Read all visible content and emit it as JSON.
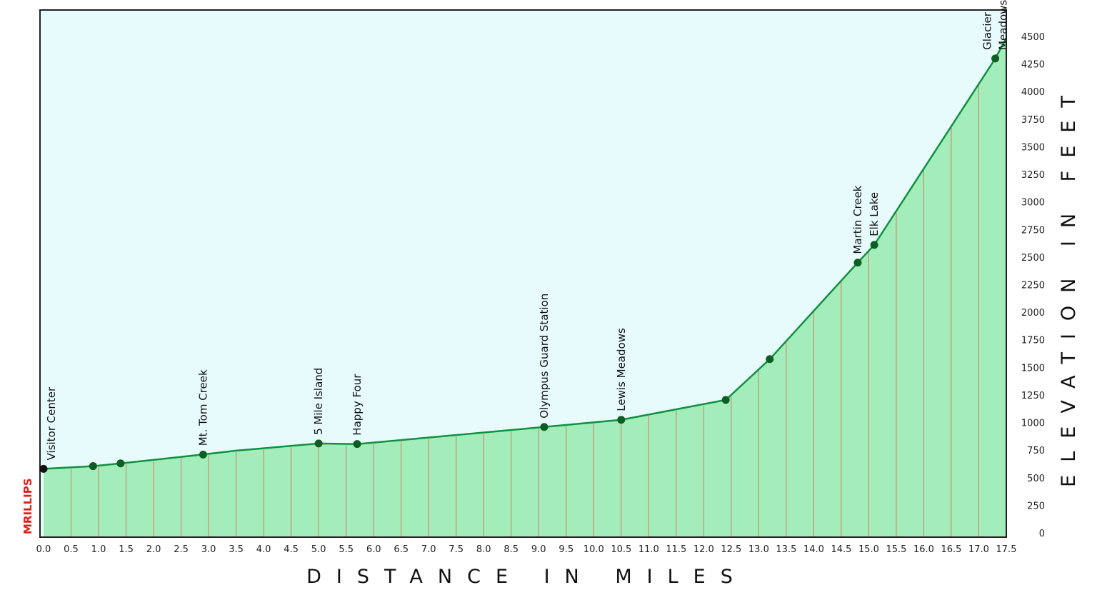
{
  "chart_data": {
    "type": "area",
    "xlabel": "DISTANCE IN MILES",
    "ylabel": "ELEVATION IN FEET",
    "xlim": [
      0,
      17.5
    ],
    "ylim": [
      0,
      4500
    ],
    "x_ticks": [
      "0.0",
      "0.5",
      "1.0",
      "1.5",
      "2.0",
      "2.5",
      "3.0",
      "3.5",
      "4.0",
      "4.5",
      "5.0",
      "5.5",
      "6.0",
      "6.5",
      "7.0",
      "7.5",
      "8.0",
      "8.5",
      "9.0",
      "9.5",
      "10.0",
      "10.5",
      "11.0",
      "11.5",
      "12.0",
      "12.5",
      "13.0",
      "13.5",
      "14.0",
      "14.5",
      "15.0",
      "15.5",
      "16.0",
      "16.5",
      "17.0",
      "17.5"
    ],
    "y_ticks": [
      "0",
      "250",
      "500",
      "750",
      "1000",
      "1250",
      "1500",
      "1750",
      "2000",
      "2250",
      "2500",
      "2750",
      "3000",
      "3250",
      "3500",
      "3750",
      "4000",
      "4250",
      "4500"
    ],
    "y_axis_side": "right",
    "grid": true,
    "profile": [
      {
        "x": 0.0,
        "y": 580
      },
      {
        "x": 0.9,
        "y": 605
      },
      {
        "x": 1.4,
        "y": 630
      },
      {
        "x": 2.9,
        "y": 710
      },
      {
        "x": 3.5,
        "y": 745
      },
      {
        "x": 5.0,
        "y": 810
      },
      {
        "x": 5.7,
        "y": 805
      },
      {
        "x": 9.1,
        "y": 960
      },
      {
        "x": 10.5,
        "y": 1025
      },
      {
        "x": 12.4,
        "y": 1205
      },
      {
        "x": 13.2,
        "y": 1575
      },
      {
        "x": 14.8,
        "y": 2450
      },
      {
        "x": 15.1,
        "y": 2610
      },
      {
        "x": 17.3,
        "y": 4300
      },
      {
        "x": 17.5,
        "y": 4485
      }
    ],
    "waypoints": [
      {
        "label": "Visitor Center",
        "x": 0.0,
        "y": 580
      },
      {
        "label": "",
        "x": 0.9,
        "y": 605
      },
      {
        "label": "",
        "x": 1.4,
        "y": 630
      },
      {
        "label": "Mt. Tom Creek",
        "x": 2.9,
        "y": 710
      },
      {
        "label": "5 Mile Island",
        "x": 5.0,
        "y": 810
      },
      {
        "label": "Happy Four",
        "x": 5.7,
        "y": 805
      },
      {
        "label": "Olympus Guard Station",
        "x": 9.1,
        "y": 960
      },
      {
        "label": "Lewis Meadows",
        "x": 10.5,
        "y": 1025
      },
      {
        "label": "",
        "x": 12.4,
        "y": 1205
      },
      {
        "label": "",
        "x": 13.2,
        "y": 1575
      },
      {
        "label": "Martin Creek",
        "x": 14.8,
        "y": 2450
      },
      {
        "label": "Elk Lake",
        "x": 15.1,
        "y": 2610
      },
      {
        "label": [
          "Glacier",
          "Meadows"
        ],
        "x": 17.3,
        "y": 4300
      }
    ],
    "signature": "MRILLIPS",
    "colors": {
      "plot_background": "#e8fbfc",
      "area_fill": "#a3edba",
      "profile_line": "#109040",
      "vertical_grid": "#d37b6a",
      "horizontal_grid": "#127a3a",
      "waypoint_marker": "#0d5e22",
      "start_marker": "#111111",
      "frame": "#222222",
      "signature": "#e0201b"
    }
  }
}
